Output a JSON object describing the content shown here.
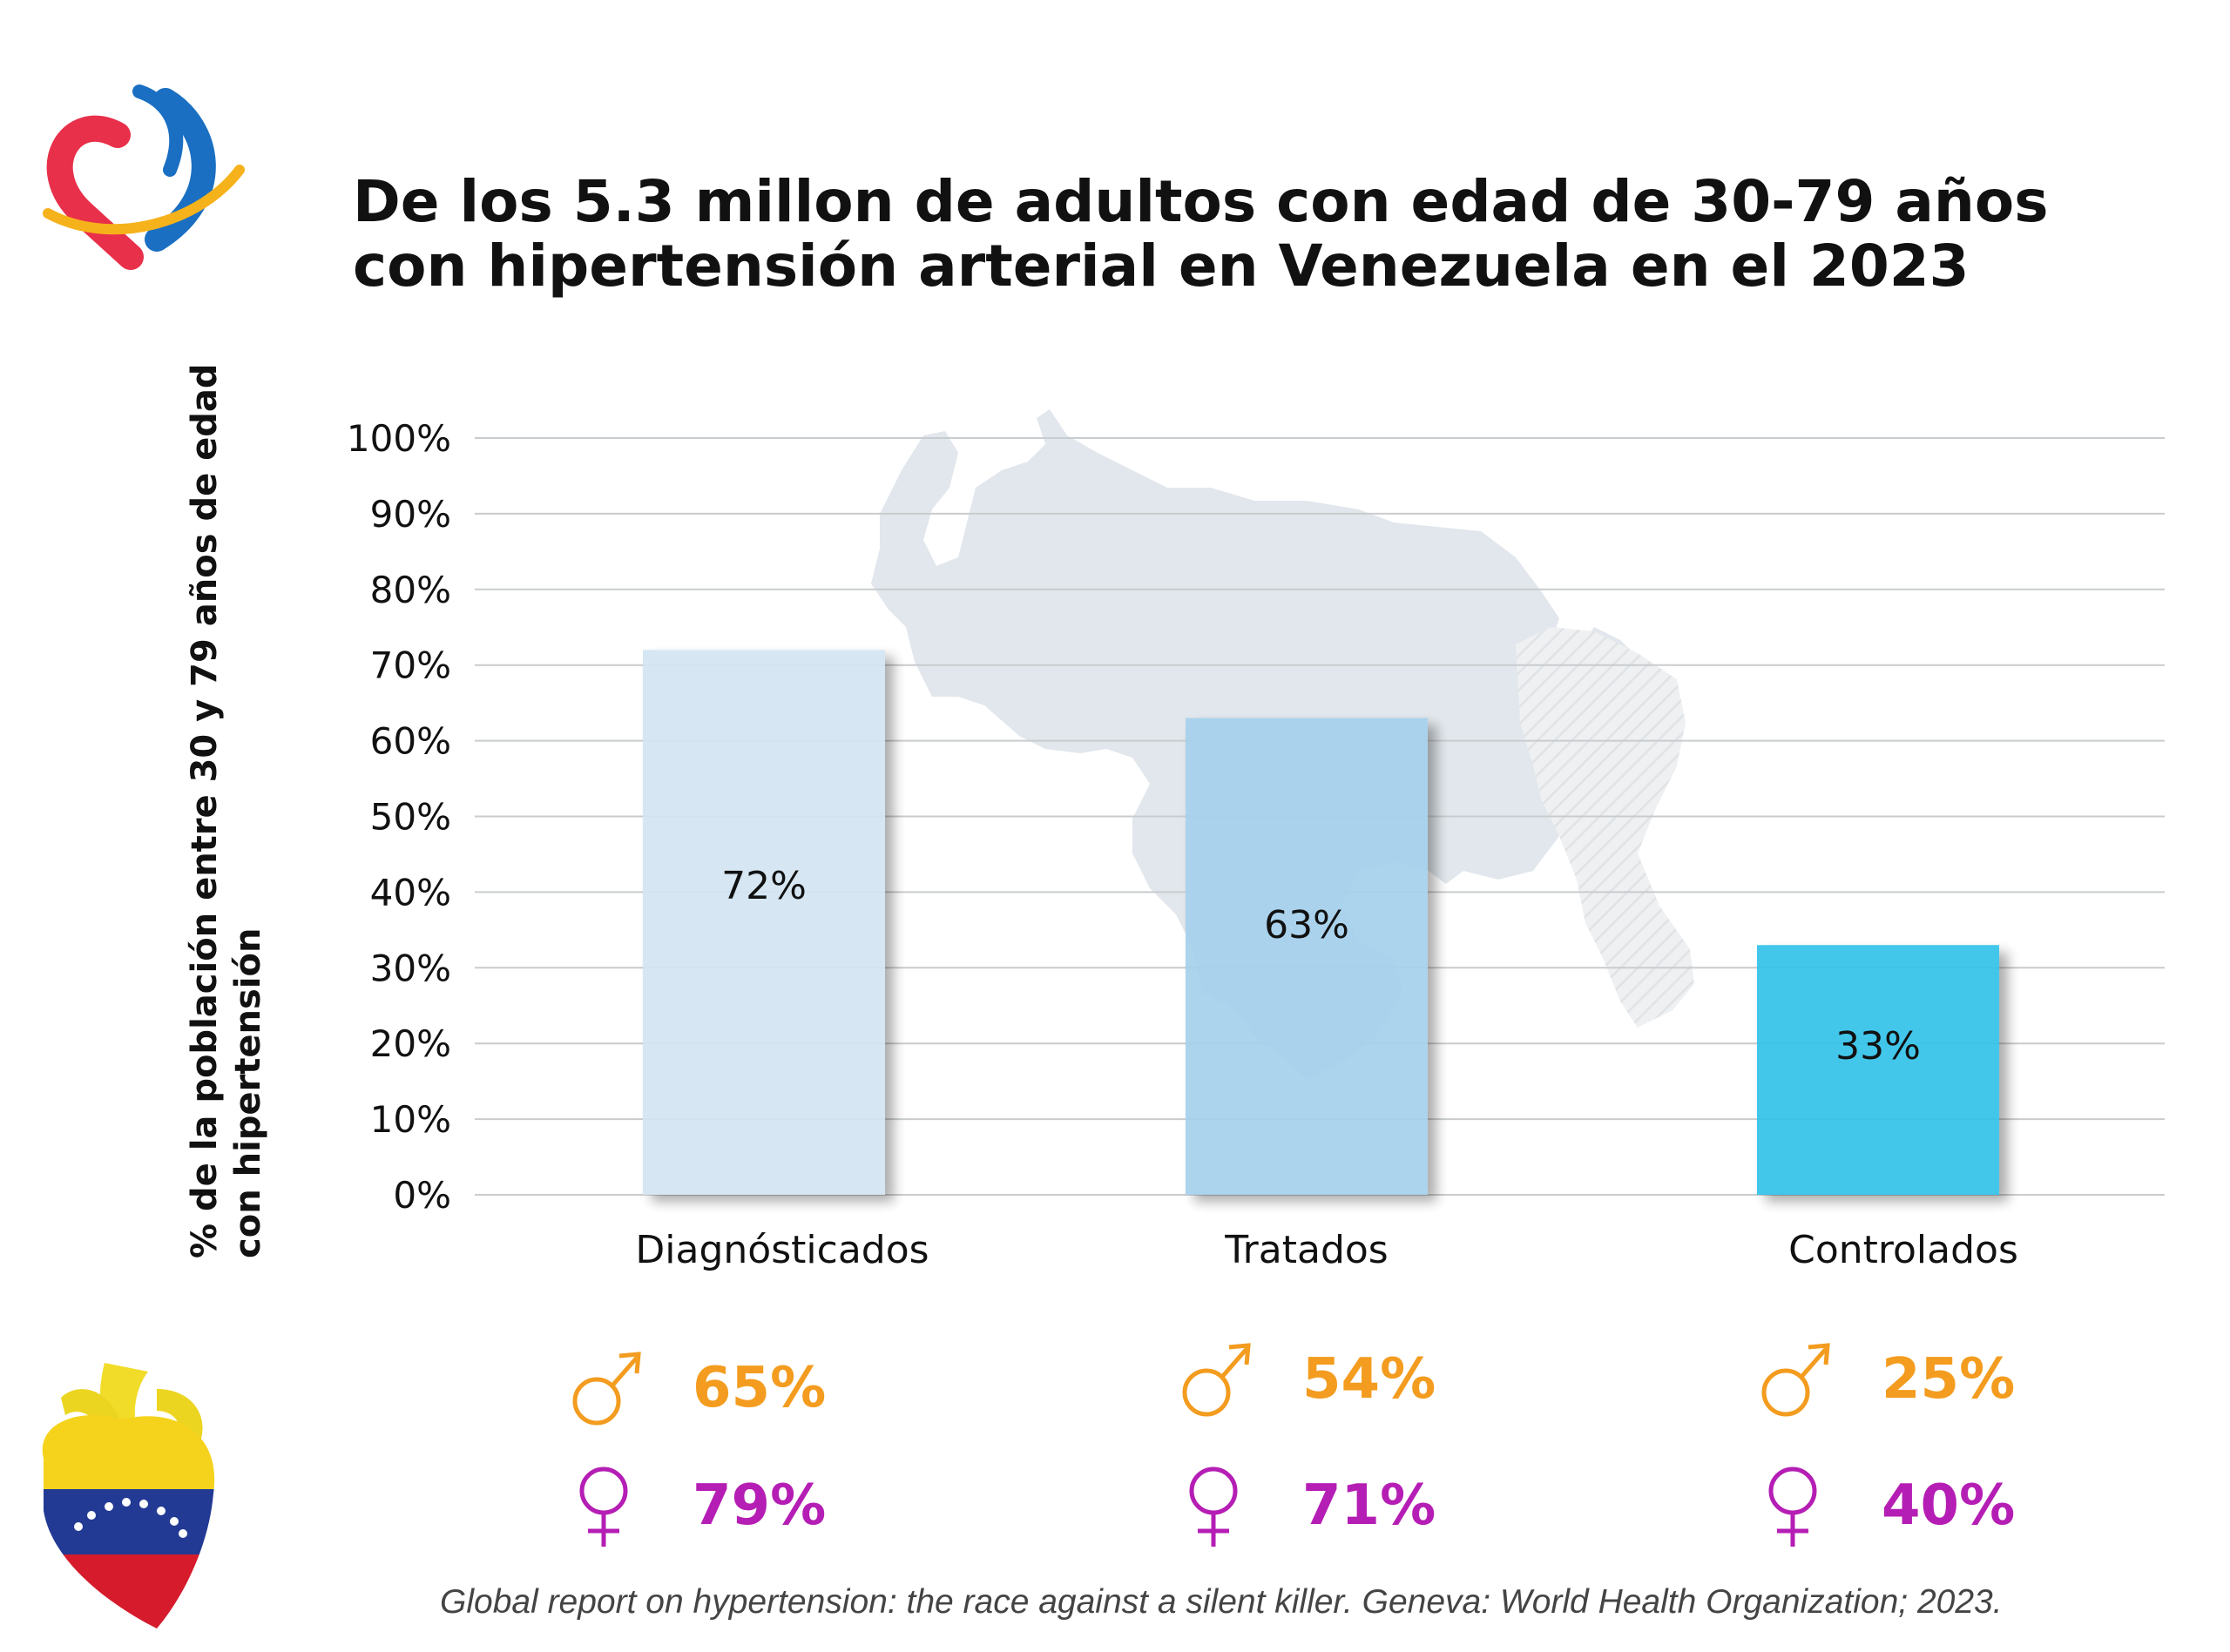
{
  "title": "De los 5.3 millon de adultos con edad de 30-79 años con hipertensión arterial en Venezuela en el 2023",
  "source": "Global report on hypertension: the race against a silent killer. Geneva: World Health Organization; 2023.",
  "colors": {
    "bar_diagnosticados": "#d3e6f2",
    "bar_tratados": "#a6d1ec",
    "bar_controlados": "#31c3ea",
    "male": "#f39c1f",
    "female": "#b51eb4"
  },
  "icons": [
    "logo-heart-hands-icon",
    "map-venezuela-icon",
    "male-symbol-icon",
    "female-symbol-icon",
    "venezuela-flag-heart-icon"
  ],
  "chart_data": {
    "type": "bar",
    "ylabel": "% de la población entre 30 y 79 años de edad con hipertensión",
    "ylim": [
      0,
      100
    ],
    "yticks": [
      "0%",
      "10%",
      "20%",
      "30%",
      "40%",
      "50%",
      "60%",
      "70%",
      "80%",
      "90%",
      "100%"
    ],
    "grid": true,
    "categories": [
      "Diagnósticados",
      "Tratados",
      "Controlados"
    ],
    "values": [
      72,
      63,
      33
    ],
    "data_labels": [
      "72%",
      "63%",
      "33%"
    ]
  },
  "by_sex": [
    {
      "category": "Diagnósticados",
      "male": "65%",
      "female": "79%"
    },
    {
      "category": "Tratados",
      "male": "54%",
      "female": "71%"
    },
    {
      "category": "Controlados",
      "male": "25%",
      "female": "40%"
    }
  ]
}
